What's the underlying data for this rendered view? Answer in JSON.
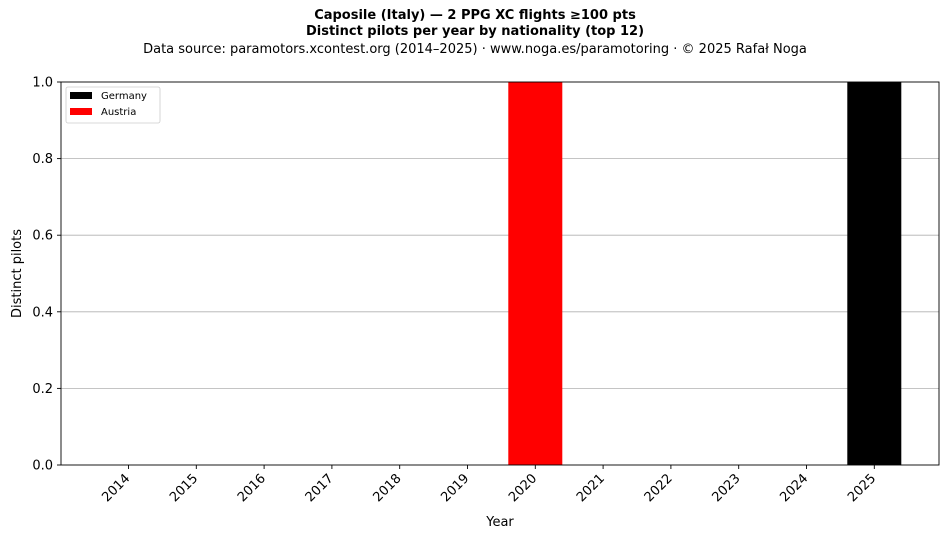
{
  "header": {
    "title_line1": "Caposile (Italy)  —  2 PPG XC flights ≥100 pts",
    "title_line2": "Distinct pilots per year by nationality (top 12)",
    "subtitle": "Data source: paramotors.xcontest.org (2014–2025)  ·  www.noga.es/paramotoring  ·  © 2025 Rafał Noga"
  },
  "chart_data": {
    "type": "bar",
    "stacked": true,
    "categories": [
      "2014",
      "2015",
      "2016",
      "2017",
      "2018",
      "2019",
      "2020",
      "2021",
      "2022",
      "2023",
      "2024",
      "2025"
    ],
    "series": [
      {
        "name": "Germany",
        "color": "#000000",
        "values": [
          0,
          0,
          0,
          0,
          0,
          0,
          0,
          0,
          0,
          0,
          0,
          1
        ]
      },
      {
        "name": "Austria",
        "color": "#ff0000",
        "values": [
          0,
          0,
          0,
          0,
          0,
          0,
          1,
          0,
          0,
          0,
          0,
          0
        ]
      }
    ],
    "xlabel": "Year",
    "ylabel": "Distinct pilots",
    "ylim": [
      0,
      1
    ],
    "yticks": [
      "0.0",
      "0.2",
      "0.4",
      "0.6",
      "0.8",
      "1.0"
    ],
    "grid": "horizontal",
    "legend_position": "top-left"
  }
}
